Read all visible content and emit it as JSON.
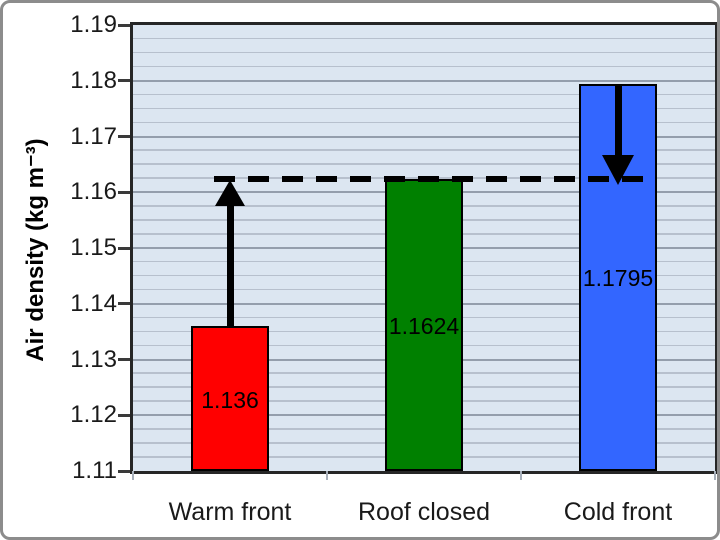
{
  "chart_data": {
    "type": "bar",
    "categories": [
      "Warm front",
      "Roof closed",
      "Cold front"
    ],
    "values": [
      1.136,
      1.1624,
      1.1795
    ],
    "bar_labels": [
      "1.136",
      "1.1624",
      "1.1795"
    ],
    "bar_colors": [
      "#ff0000",
      "#008000",
      "#3366ff"
    ],
    "title": "",
    "xlabel": "",
    "ylabel": "Air density (kg m⁻³)",
    "ylim": [
      1.11,
      1.19
    ],
    "ytick_step": 0.01,
    "minor_grid_step": 0.0025,
    "grid": true,
    "legend": "none",
    "plot_background": "#dce6f1",
    "reference_line": {
      "value": 1.1624,
      "style": "dashed",
      "color": "#000000"
    },
    "annotations": [
      {
        "type": "arrow",
        "direction": "up",
        "category": "Warm front",
        "from_value": 1.136,
        "to_value": 1.1624
      },
      {
        "type": "arrow",
        "direction": "down",
        "category": "Cold front",
        "from_value": 1.1795,
        "to_value": 1.1624
      }
    ]
  },
  "frame": {
    "background": "#ffffff",
    "border_color": "#8c8c8c"
  }
}
